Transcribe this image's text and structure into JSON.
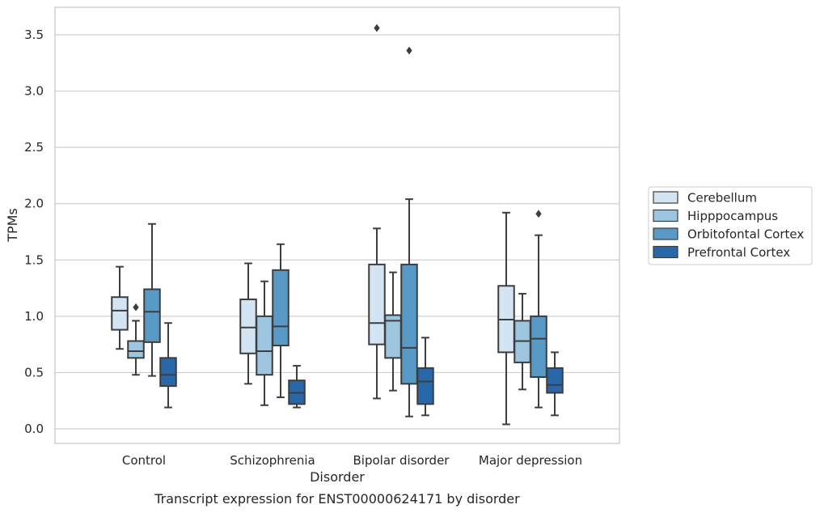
{
  "chart_data": {
    "type": "box",
    "xlabel": "Disorder",
    "ylabel": "TPMs",
    "caption": "Transcript expression for ENST00000624171 by disorder",
    "categories": [
      "Control",
      "Schizophrenia",
      "Bipolar disorder",
      "Major depression"
    ],
    "ylim": [
      -0.13,
      3.75
    ],
    "yticks": [
      0.0,
      0.5,
      1.0,
      1.5,
      2.0,
      2.5,
      3.0,
      3.5
    ],
    "ytick_labels": [
      "0.0",
      "0.5",
      "1.0",
      "1.5",
      "2.0",
      "2.5",
      "3.0",
      "3.5"
    ],
    "grid": "horizontal",
    "legend_position": "right",
    "series": [
      {
        "name": "Cerebellum",
        "color": "#d3e4f3",
        "boxes": [
          {
            "whislo": 0.71,
            "q1": 0.88,
            "med": 1.05,
            "q3": 1.17,
            "whishi": 1.44,
            "fliers": []
          },
          {
            "whislo": 0.4,
            "q1": 0.67,
            "med": 0.9,
            "q3": 1.15,
            "whishi": 1.47,
            "fliers": []
          },
          {
            "whislo": 0.27,
            "q1": 0.75,
            "med": 0.94,
            "q3": 1.46,
            "whishi": 1.78,
            "fliers": [
              3.56
            ]
          },
          {
            "whislo": 0.04,
            "q1": 0.68,
            "med": 0.97,
            "q3": 1.27,
            "whishi": 1.92,
            "fliers": []
          }
        ]
      },
      {
        "name": "Hipppocampus",
        "color": "#9dc5df",
        "boxes": [
          {
            "whislo": 0.48,
            "q1": 0.63,
            "med": 0.69,
            "q3": 0.78,
            "whishi": 0.96,
            "fliers": [
              1.08
            ]
          },
          {
            "whislo": 0.21,
            "q1": 0.48,
            "med": 0.69,
            "q3": 1.0,
            "whishi": 1.31,
            "fliers": []
          },
          {
            "whislo": 0.34,
            "q1": 0.63,
            "med": 0.96,
            "q3": 1.01,
            "whishi": 1.39,
            "fliers": []
          },
          {
            "whislo": 0.35,
            "q1": 0.59,
            "med": 0.78,
            "q3": 0.96,
            "whishi": 1.2,
            "fliers": []
          }
        ]
      },
      {
        "name": "Orbitofontal Cortex",
        "color": "#5899c6",
        "boxes": [
          {
            "whislo": 0.47,
            "q1": 0.77,
            "med": 1.04,
            "q3": 1.24,
            "whishi": 1.82,
            "fliers": []
          },
          {
            "whislo": 0.28,
            "q1": 0.74,
            "med": 0.91,
            "q3": 1.41,
            "whishi": 1.64,
            "fliers": []
          },
          {
            "whislo": 0.11,
            "q1": 0.4,
            "med": 0.72,
            "q3": 1.46,
            "whishi": 2.04,
            "fliers": [
              3.36
            ]
          },
          {
            "whislo": 0.19,
            "q1": 0.46,
            "med": 0.8,
            "q3": 1.0,
            "whishi": 1.72,
            "fliers": [
              1.91
            ]
          }
        ]
      },
      {
        "name": "Prefrontal Cortex",
        "color": "#2868a8",
        "boxes": [
          {
            "whislo": 0.19,
            "q1": 0.38,
            "med": 0.48,
            "q3": 0.63,
            "whishi": 0.94,
            "fliers": []
          },
          {
            "whislo": 0.19,
            "q1": 0.22,
            "med": 0.32,
            "q3": 0.43,
            "whishi": 0.56,
            "fliers": []
          },
          {
            "whislo": 0.12,
            "q1": 0.22,
            "med": 0.42,
            "q3": 0.54,
            "whishi": 0.81,
            "fliers": []
          },
          {
            "whislo": 0.12,
            "q1": 0.32,
            "med": 0.39,
            "q3": 0.54,
            "whishi": 0.68,
            "fliers": []
          }
        ]
      }
    ]
  },
  "style": {
    "line_color": "#3d3d3d",
    "grid_color": "#cfcfcf",
    "frame_color": "#c8c8c8"
  }
}
